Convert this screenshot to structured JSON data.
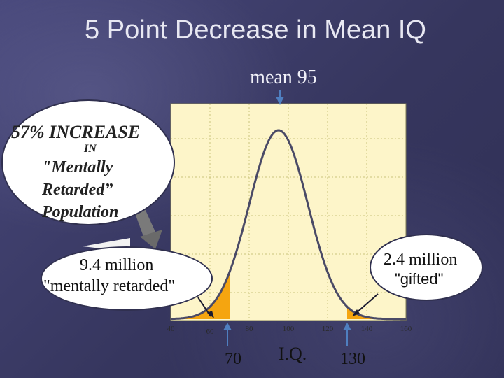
{
  "slide": {
    "title": "5 Point Decrease in Mean IQ",
    "mean_label": "mean 95"
  },
  "callouts": {
    "increase": {
      "line1": "57% INCREASE",
      "line2": "IN",
      "line3": "\"Mentally",
      "line4": "Retarded”",
      "line5": "Population"
    },
    "retarded": {
      "line1": "9.4 million",
      "line2": "\"mentally retarded\""
    },
    "gifted": {
      "line1": "2.4 million",
      "line2": "\"gifted\""
    }
  },
  "axis_markers": {
    "low": "70",
    "xlabel": "I.Q.",
    "high": "130"
  },
  "colors": {
    "plot_bg": "#fdf5c9",
    "curve": "#4a4a66",
    "shade": "#f5a510",
    "arrow": "#4f7fc0",
    "grid": "#c9c27a"
  },
  "chart_data": {
    "type": "area",
    "title": "5 Point Decrease in Mean IQ",
    "xlabel": "I.Q.",
    "ylabel": "",
    "distribution": "normal",
    "mean": 95,
    "sd": 15,
    "xlim": [
      40,
      160
    ],
    "x_ticks": [
      "40",
      "60",
      "80",
      "100",
      "120",
      "140",
      "160"
    ],
    "shaded_regions": [
      {
        "from": 40,
        "to": 70,
        "label": "9.4 million \"mentally retarded\""
      },
      {
        "from": 130,
        "to": 160,
        "label": "2.4 million \"gifted\""
      }
    ],
    "annotations": [
      "mean 95",
      "57% INCREASE IN \"Mentally Retarded” Population",
      "70",
      "130"
    ],
    "grid": true
  }
}
